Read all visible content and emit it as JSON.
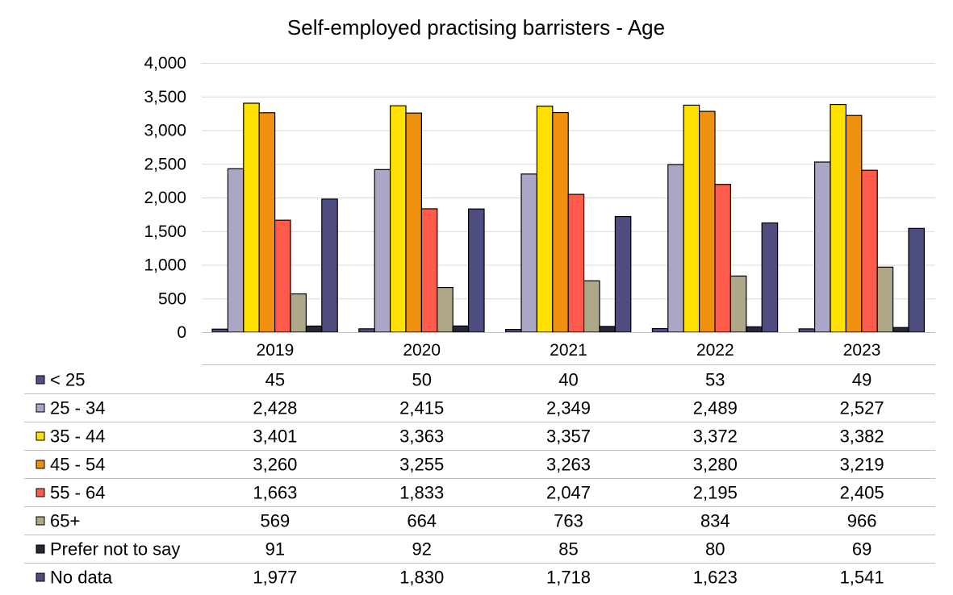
{
  "chart_data": {
    "type": "bar",
    "title": "Self-employed practising barristers - Age",
    "xlabel": "",
    "ylabel": "",
    "ylim": [
      0,
      4000
    ],
    "yticks": [
      "0",
      "500",
      "1,000",
      "1,500",
      "2,000",
      "2,500",
      "3,000",
      "3,500",
      "4,000"
    ],
    "categories": [
      "2019",
      "2020",
      "2021",
      "2022",
      "2023"
    ],
    "grid": "horizontal",
    "legend": "data-table",
    "series": [
      {
        "name": "< 25",
        "color": "#5b4a87",
        "values": [
          45,
          50,
          40,
          53,
          49
        ],
        "labels": [
          "45",
          "50",
          "40",
          "53",
          "49"
        ]
      },
      {
        "name": "25 - 34",
        "color": "#a9a6c6",
        "values": [
          2428,
          2415,
          2349,
          2489,
          2527
        ],
        "labels": [
          "2,428",
          "2,415",
          "2,349",
          "2,489",
          "2,527"
        ]
      },
      {
        "name": "35 - 44",
        "color": "#ffe000",
        "values": [
          3401,
          3363,
          3357,
          3372,
          3382
        ],
        "labels": [
          "3,401",
          "3,363",
          "3,357",
          "3,372",
          "3,382"
        ]
      },
      {
        "name": "45 - 54",
        "color": "#f0900f",
        "values": [
          3260,
          3255,
          3263,
          3280,
          3219
        ],
        "labels": [
          "3,260",
          "3,255",
          "3,263",
          "3,280",
          "3,219"
        ]
      },
      {
        "name": "55 - 64",
        "color": "#ff5a4a",
        "values": [
          1663,
          1833,
          2047,
          2195,
          2405
        ],
        "labels": [
          "1,663",
          "1,833",
          "2,047",
          "2,195",
          "2,405"
        ]
      },
      {
        "name": "65+",
        "color": "#aea889",
        "values": [
          569,
          664,
          763,
          834,
          966
        ],
        "labels": [
          "569",
          "664",
          "763",
          "834",
          "966"
        ]
      },
      {
        "name": "Prefer not to say",
        "color": "#2a2438",
        "values": [
          91,
          92,
          85,
          80,
          69
        ],
        "labels": [
          "91",
          "92",
          "85",
          "80",
          "69"
        ]
      },
      {
        "name": "No data",
        "color": "#4f4d80",
        "values": [
          1977,
          1830,
          1718,
          1623,
          1541
        ],
        "labels": [
          "1,977",
          "1,830",
          "1,718",
          "1,623",
          "1,541"
        ]
      }
    ]
  }
}
